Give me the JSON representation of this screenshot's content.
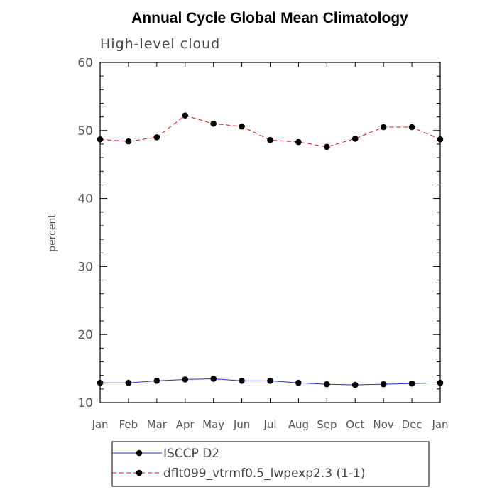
{
  "chart_data": {
    "type": "line",
    "title": "Annual Cycle Global Mean Climatology",
    "subtitle": "High-level cloud",
    "ylabel": "percent",
    "xlabel": "",
    "ylim": [
      10,
      60
    ],
    "yticks": [
      10,
      20,
      30,
      40,
      50,
      60
    ],
    "categories": [
      "Jan",
      "Feb",
      "Mar",
      "Apr",
      "May",
      "Jun",
      "Jul",
      "Aug",
      "Sep",
      "Oct",
      "Nov",
      "Dec",
      "Jan"
    ],
    "grid": false,
    "legend_position": "bottom",
    "series": [
      {
        "name": "ISCCP D2",
        "color": "#2b2bd0",
        "line_style": "solid",
        "marker": "circle",
        "values": [
          12.9,
          12.9,
          13.2,
          13.4,
          13.5,
          13.2,
          13.2,
          12.9,
          12.7,
          12.6,
          12.7,
          12.8,
          12.9
        ]
      },
      {
        "name": "dflt099_vtrmf0.5_lwpexp2.3 (1-1)",
        "color": "#e01010",
        "line_style": "dashed",
        "marker": "circle",
        "values": [
          48.7,
          48.4,
          49.0,
          52.2,
          51.0,
          50.6,
          48.6,
          48.3,
          47.6,
          48.8,
          50.5,
          50.5,
          48.7
        ]
      }
    ]
  }
}
